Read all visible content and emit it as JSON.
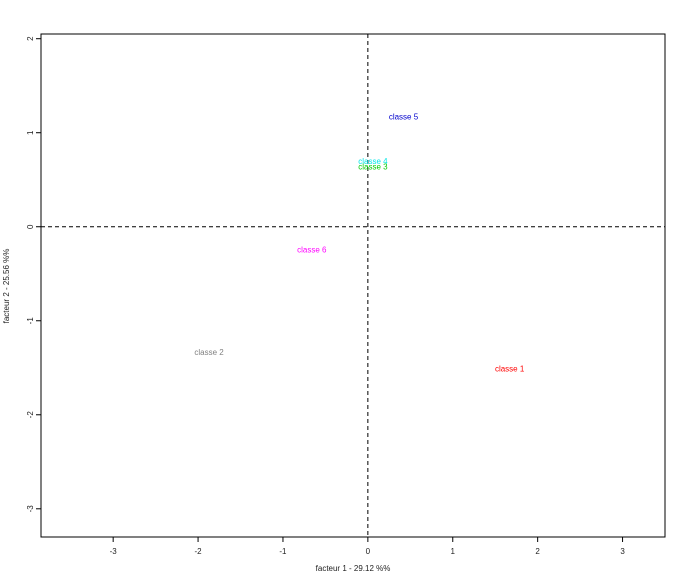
{
  "chart_data": {
    "type": "scatter",
    "xlabel": "facteur  1  - 29.12 %%",
    "ylabel": "facteur  2  - 25.56 %%",
    "xlim": [
      -3.85,
      3.5
    ],
    "ylim": [
      -3.3,
      2.05
    ],
    "xticks": [
      -3,
      -2,
      -1,
      0,
      1,
      2,
      3
    ],
    "yticks": [
      2,
      1,
      0,
      -1,
      -2,
      -3
    ],
    "tick_labels_x": [
      "-3",
      "-2",
      "-1",
      "0",
      "1",
      "2",
      "3"
    ],
    "tick_labels_y": [
      "2",
      "1",
      "0",
      "-1",
      "-2",
      "-3"
    ],
    "grid": false,
    "reference_lines": {
      "x": 0,
      "y": 0,
      "style": "dashed"
    },
    "points": [
      {
        "label": "classe 5",
        "x": 0.42,
        "y": 1.17,
        "color": "#0000cc"
      },
      {
        "label": "classe 4",
        "x": 0.06,
        "y": 0.7,
        "color": "#00e5e5"
      },
      {
        "label": "classe 3",
        "x": 0.06,
        "y": 0.64,
        "color": "#00cc00"
      },
      {
        "label": "classe 6",
        "x": -0.66,
        "y": -0.24,
        "color": "#ff00ff"
      },
      {
        "label": "classe 2",
        "x": -1.87,
        "y": -1.33,
        "color": "#808080"
      },
      {
        "label": "classe 1",
        "x": 1.67,
        "y": -1.51,
        "color": "#ff0000"
      }
    ]
  }
}
